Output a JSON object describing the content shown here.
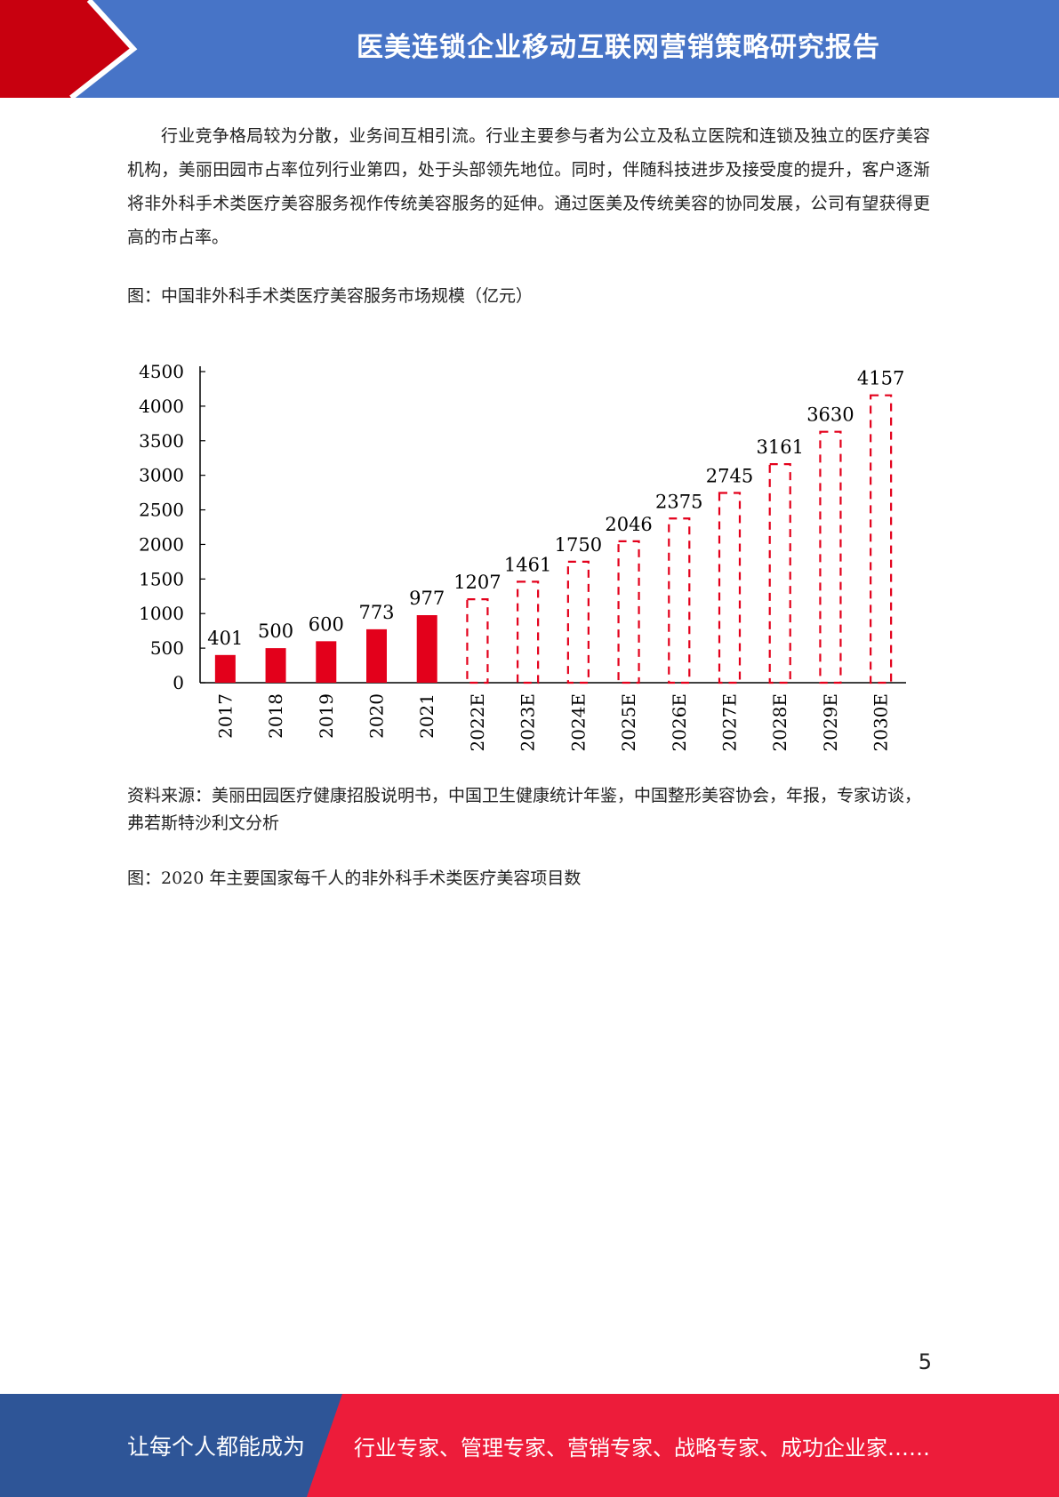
{
  "header": {
    "title": "医美连锁企业移动互联网营销策略研究报告",
    "colors": {
      "blue": "#4774c7",
      "red": "#c8000f"
    }
  },
  "body": {
    "paragraph": "行业竞争格局较为分散，业务间互相引流。行业主要参与者为公立及私立医院和连锁及独立的医疗美容机构，美丽田园市占率位列行业第四，处于头部领先地位。同时，伴随科技进步及接受度的提升，客户逐渐将非外科手术类医疗美容服务视作传统美容服务的延伸。通过医美及传统美容的协同发展，公司有望获得更高的市占率。",
    "figure1_caption": "图：中国非外科手术类医疗美容服务市场规模（亿元）",
    "source": "资料来源：美丽田园医疗健康招股说明书，中国卫生健康统计年鉴，中国整形美容协会，年报，专家访谈，弗若斯特沙利文分析",
    "figure2_caption": "图：2020 年主要国家每千人的非外科手术类医疗美容项目数"
  },
  "chart_data": {
    "type": "bar",
    "categories": [
      "2017",
      "2018",
      "2019",
      "2020",
      "2021",
      "2022E",
      "2023E",
      "2024E",
      "2025E",
      "2026E",
      "2027E",
      "2028E",
      "2029E",
      "2030E"
    ],
    "values": [
      401,
      500,
      600,
      773,
      977,
      1207,
      1461,
      1750,
      2046,
      2375,
      2745,
      3161,
      3630,
      4157
    ],
    "estimated": [
      false,
      false,
      false,
      false,
      false,
      true,
      true,
      true,
      true,
      true,
      true,
      true,
      true,
      true
    ],
    "yticks": [
      0,
      500,
      1000,
      1500,
      2000,
      2500,
      3000,
      3500,
      4000,
      4500
    ],
    "ylim": [
      0,
      4500
    ],
    "bar_color": "#e3001b",
    "title": "",
    "xlabel": "",
    "ylabel": "",
    "grid": false
  },
  "page_number": "5",
  "footer": {
    "left_text": "让每个人都能成为",
    "right_text": "行业专家、管理专家、营销专家、战略专家、成功企业家……",
    "colors": {
      "blue": "#2e5597",
      "red": "#ed1c3a"
    }
  }
}
